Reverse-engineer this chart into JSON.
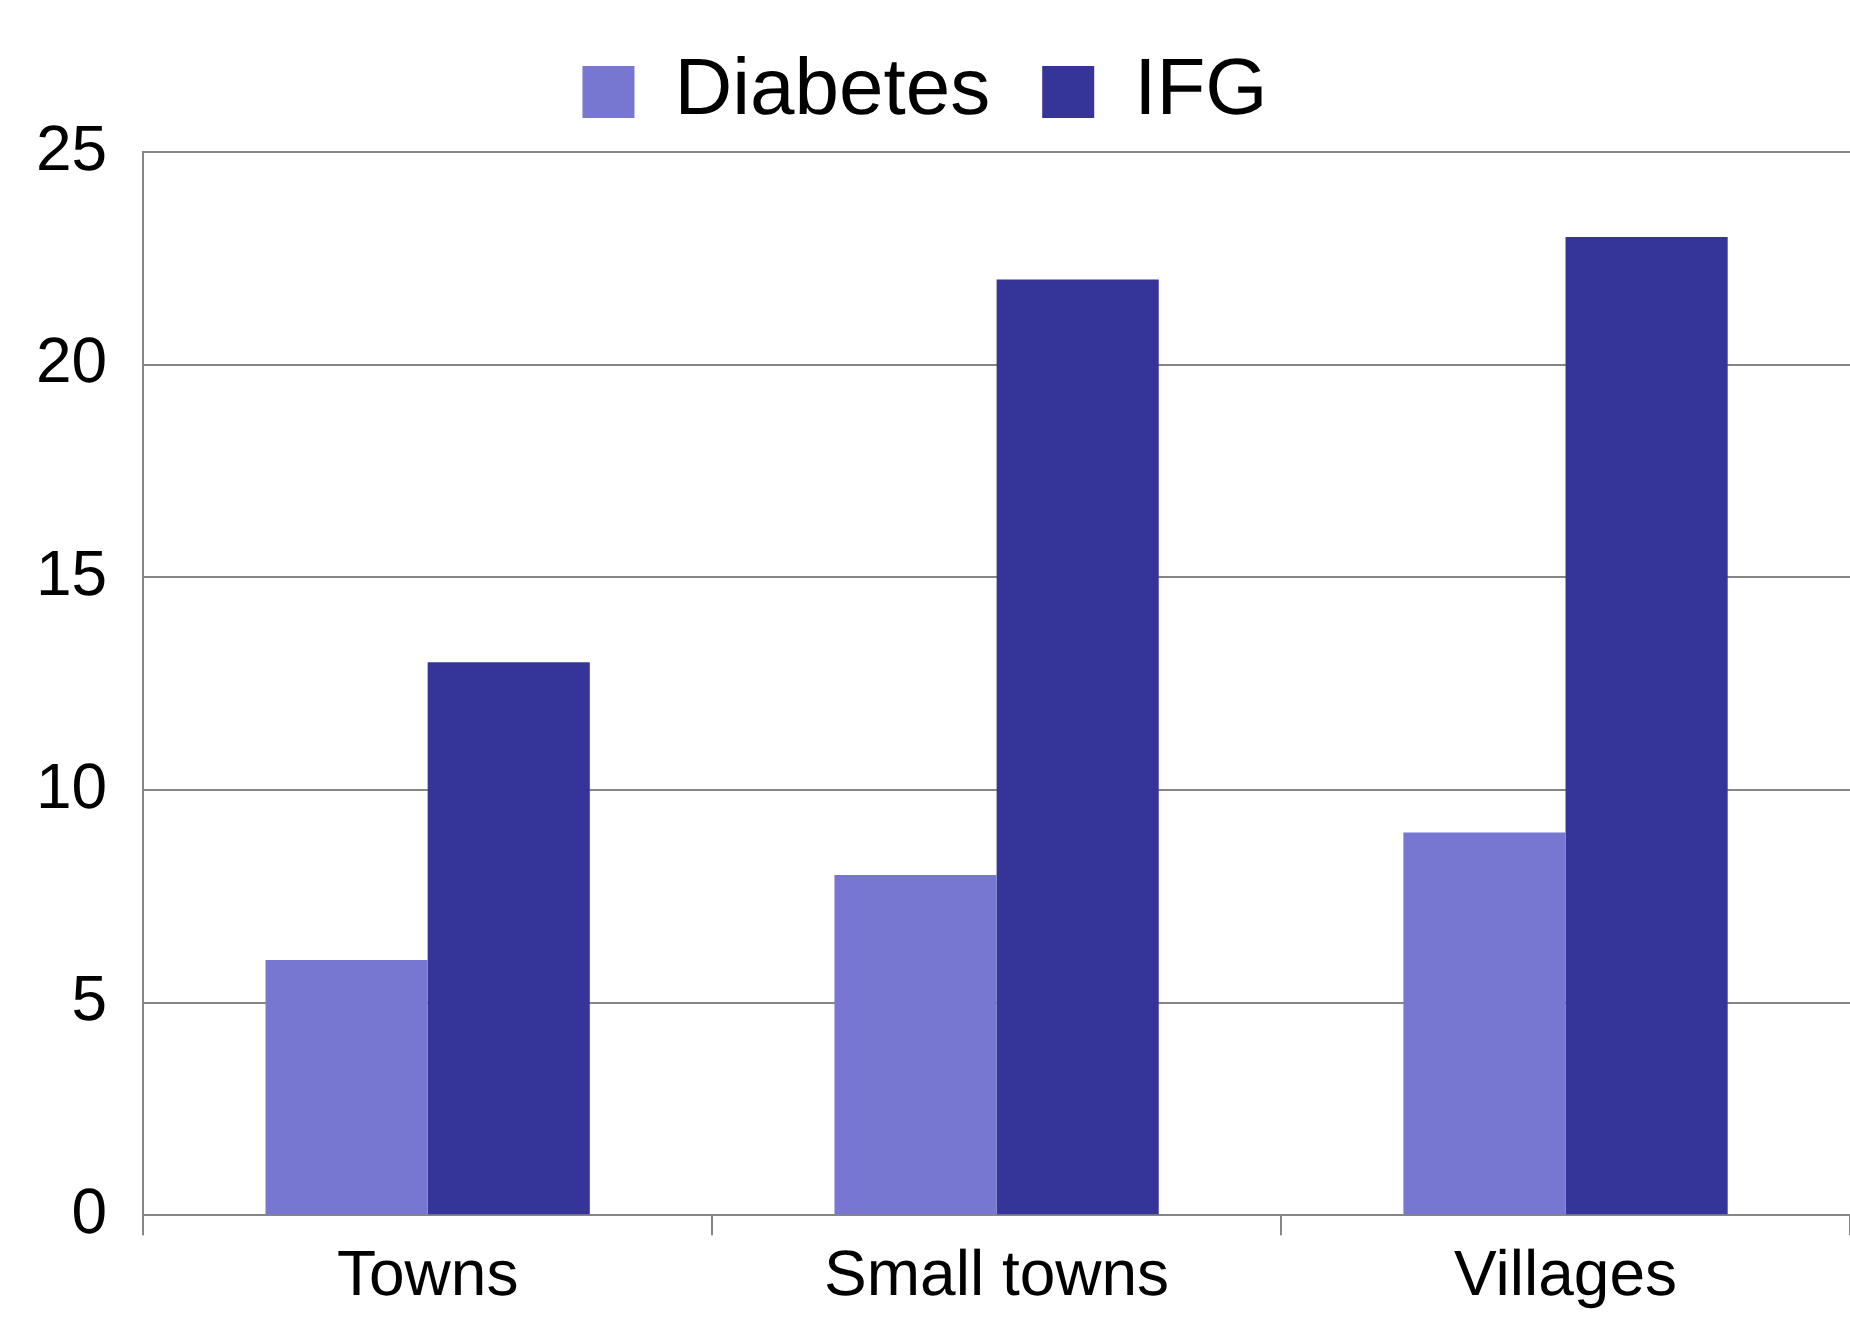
{
  "chart_data": {
    "type": "bar",
    "categories": [
      "Towns",
      "Small towns",
      "Villages"
    ],
    "series": [
      {
        "name": "Diabetes",
        "color": "#7777d1",
        "values": [
          6,
          8,
          9
        ]
      },
      {
        "name": "IFG",
        "color": "#343499",
        "values": [
          13,
          22,
          23
        ]
      }
    ],
    "ylim": [
      0,
      25
    ],
    "yticks": [
      0,
      5,
      10,
      15,
      20,
      25
    ],
    "grid": "y",
    "legend": "top"
  }
}
